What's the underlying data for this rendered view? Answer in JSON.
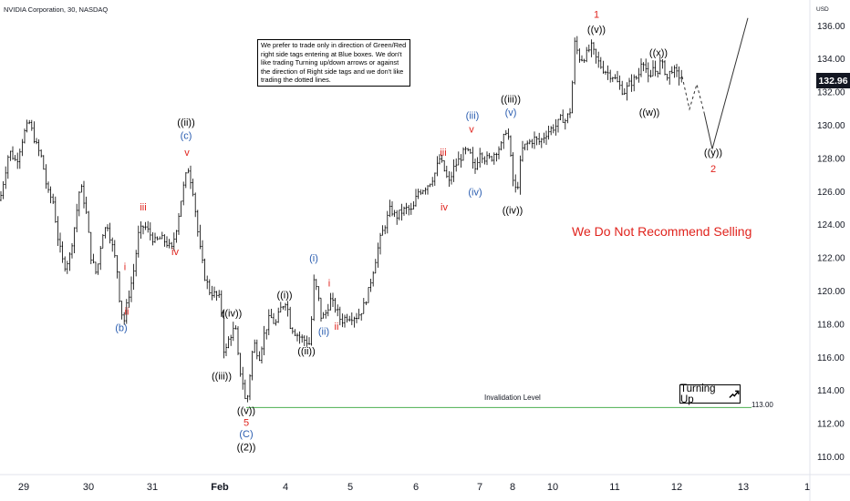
{
  "title": "NVIDIA Corporation, 30, NASDAQ",
  "currency": "USD",
  "note": "We prefer to trade only in direction of Green/Red right side tags entering at Blue boxes. We don't like trading Turning up/down arrows or against the direction of Right side tags and we don't like trading the dotted lines.",
  "recommendation": "We Do Not Recommend Selling",
  "turning_label": "Turning Up",
  "invalidation_label": "Invalidation Level",
  "colors": {
    "red": "#e0231d",
    "blue": "#2a5db0",
    "green": "#4caf50",
    "text": "#131722"
  },
  "chart_data": {
    "type": "candlestick",
    "ylim": [
      109,
      137
    ],
    "y_ticks": [
      "110.00",
      "112.00",
      "114.00",
      "116.00",
      "118.00",
      "120.00",
      "122.00",
      "124.00",
      "126.00",
      "128.00",
      "130.00",
      "132.00",
      "134.00",
      "136.00"
    ],
    "x_ticks": [
      "29",
      "30",
      "31",
      "Feb",
      "4",
      "5",
      "6",
      "7",
      "8",
      "10",
      "11",
      "12",
      "13",
      "1"
    ],
    "last_price": "132.96",
    "invalidation_level": {
      "value": 113.0,
      "label": "113.00"
    },
    "path": [
      [
        0,
        125.5
      ],
      [
        10,
        128.5
      ],
      [
        18,
        127.8
      ],
      [
        26,
        129.5
      ],
      [
        32,
        130.2
      ],
      [
        40,
        128.8
      ],
      [
        46,
        128
      ],
      [
        52,
        126
      ],
      [
        58,
        125.5
      ],
      [
        64,
        123
      ],
      [
        70,
        121.5
      ],
      [
        76,
        122
      ],
      [
        82,
        124
      ],
      [
        88,
        126.5
      ],
      [
        94,
        125
      ],
      [
        100,
        122
      ],
      [
        106,
        121
      ],
      [
        112,
        123.5
      ],
      [
        118,
        124
      ],
      [
        124,
        122.5
      ],
      [
        128,
        121.5
      ],
      [
        132,
        119
      ],
      [
        136,
        118.2
      ],
      [
        140,
        119.5
      ],
      [
        146,
        121
      ],
      [
        152,
        123.5
      ],
      [
        158,
        124
      ],
      [
        164,
        123.5
      ],
      [
        170,
        123
      ],
      [
        176,
        123.2
      ],
      [
        182,
        123
      ],
      [
        188,
        122.5
      ],
      [
        194,
        124
      ],
      [
        200,
        126
      ],
      [
        206,
        127.5
      ],
      [
        212,
        126
      ],
      [
        218,
        123
      ],
      [
        224,
        121
      ],
      [
        230,
        120
      ],
      [
        236,
        119.8
      ],
      [
        242,
        119.5
      ],
      [
        246,
        116
      ],
      [
        250,
        117
      ],
      [
        254,
        117.5
      ],
      [
        258,
        117.8
      ],
      [
        262,
        115.5
      ],
      [
        266,
        114.6
      ],
      [
        270,
        113
      ],
      [
        274,
        115
      ],
      [
        278,
        117
      ],
      [
        284,
        116
      ],
      [
        290,
        117.5
      ],
      [
        296,
        118.5
      ],
      [
        302,
        118
      ],
      [
        308,
        119
      ],
      [
        314,
        119.5
      ],
      [
        318,
        118
      ],
      [
        324,
        117.5
      ],
      [
        330,
        117.2
      ],
      [
        336,
        117
      ],
      [
        340,
        116.8
      ],
      [
        344,
        120.6
      ],
      [
        348,
        120
      ],
      [
        352,
        118.5
      ],
      [
        356,
        118.5
      ],
      [
        362,
        119.5
      ],
      [
        368,
        119
      ],
      [
        374,
        118.2
      ],
      [
        380,
        118.5
      ],
      [
        386,
        118.5
      ],
      [
        392,
        118.5
      ],
      [
        398,
        119
      ],
      [
        404,
        120
      ],
      [
        410,
        121.5
      ],
      [
        416,
        123
      ],
      [
        422,
        124
      ],
      [
        428,
        125
      ],
      [
        434,
        124.5
      ],
      [
        440,
        124.8
      ],
      [
        446,
        125
      ],
      [
        452,
        124.8
      ],
      [
        458,
        126
      ],
      [
        464,
        126.2
      ],
      [
        470,
        126.5
      ],
      [
        476,
        127
      ],
      [
        482,
        128
      ],
      [
        486,
        127.5
      ],
      [
        492,
        126.5
      ],
      [
        498,
        127.5
      ],
      [
        504,
        128
      ],
      [
        510,
        128.5
      ],
      [
        516,
        128.2
      ],
      [
        520,
        127.2
      ],
      [
        526,
        128.5
      ],
      [
        532,
        128
      ],
      [
        538,
        128
      ],
      [
        544,
        128.5
      ],
      [
        550,
        128.8
      ],
      [
        556,
        130
      ],
      [
        560,
        128
      ],
      [
        564,
        126
      ],
      [
        568,
        126.5
      ],
      [
        572,
        128.5
      ],
      [
        576,
        128.8
      ],
      [
        580,
        129
      ],
      [
        586,
        129.2
      ],
      [
        592,
        129
      ],
      [
        598,
        129.5
      ],
      [
        604,
        129.8
      ],
      [
        610,
        130
      ],
      [
        616,
        130.5
      ],
      [
        620,
        130.3
      ],
      [
        626,
        131
      ],
      [
        630,
        135
      ],
      [
        636,
        134
      ],
      [
        642,
        134.2
      ],
      [
        648,
        134.8
      ],
      [
        654,
        134
      ],
      [
        660,
        133.5
      ],
      [
        666,
        133.2
      ],
      [
        672,
        133
      ],
      [
        678,
        132.5
      ],
      [
        684,
        132
      ],
      [
        690,
        132.5
      ],
      [
        696,
        132.8
      ],
      [
        700,
        133
      ],
      [
        704,
        134.2
      ],
      [
        708,
        133.5
      ],
      [
        712,
        132.5
      ],
      [
        716,
        133.5
      ],
      [
        720,
        133.2
      ],
      [
        724,
        133.8
      ],
      [
        728,
        133.5
      ],
      [
        732,
        132.8
      ],
      [
        736,
        133.5
      ],
      [
        740,
        133.2
      ],
      [
        744,
        133
      ],
      [
        748,
        132.96
      ]
    ],
    "projection": {
      "dashed": [
        [
          748,
          132.96
        ],
        [
          756,
          131
        ],
        [
          764,
          132.5
        ],
        [
          772,
          130.8
        ]
      ],
      "solid": [
        [
          772,
          130.8
        ],
        [
          781,
          128.6
        ],
        [
          820,
          136.5
        ]
      ]
    },
    "labels": [
      {
        "text": "1",
        "x": 654,
        "y": 136.5,
        "color": "red"
      },
      {
        "text": "((v))",
        "x": 654,
        "y": 135.6,
        "color": "black"
      },
      {
        "text": "((x))",
        "x": 722,
        "y": 134.2,
        "color": "black"
      },
      {
        "text": "((w))",
        "x": 712,
        "y": 130.6,
        "color": "black"
      },
      {
        "text": "((iii))",
        "x": 560,
        "y": 131.4,
        "color": "black"
      },
      {
        "text": "(v)",
        "x": 560,
        "y": 130.6,
        "color": "blue"
      },
      {
        "text": "(iii)",
        "x": 518,
        "y": 130.4,
        "color": "blue"
      },
      {
        "text": "v",
        "x": 517,
        "y": 129.6,
        "color": "red"
      },
      {
        "text": "iii",
        "x": 486,
        "y": 128.2,
        "color": "red"
      },
      {
        "text": "iv",
        "x": 487,
        "y": 124.9,
        "color": "red"
      },
      {
        "text": "(iv)",
        "x": 521,
        "y": 125.8,
        "color": "blue"
      },
      {
        "text": "((iv))",
        "x": 562,
        "y": 124.7,
        "color": "black"
      },
      {
        "text": "((y))",
        "x": 782,
        "y": 128.2,
        "color": "black"
      },
      {
        "text": "2",
        "x": 782,
        "y": 127.2,
        "color": "red"
      },
      {
        "text": "((ii))",
        "x": 204,
        "y": 130.0,
        "color": "black"
      },
      {
        "text": "(c)",
        "x": 204,
        "y": 129.2,
        "color": "blue"
      },
      {
        "text": "v",
        "x": 205,
        "y": 128.2,
        "color": "red"
      },
      {
        "text": "iii",
        "x": 157,
        "y": 124.9,
        "color": "red"
      },
      {
        "text": "iv",
        "x": 192,
        "y": 122.2,
        "color": "red"
      },
      {
        "text": "i",
        "x": 137,
        "y": 121.3,
        "color": "red"
      },
      {
        "text": "ii",
        "x": 139,
        "y": 118.6,
        "color": "red"
      },
      {
        "text": "(b)",
        "x": 133,
        "y": 117.6,
        "color": "blue"
      },
      {
        "text": "(i)",
        "x": 344,
        "y": 121.8,
        "color": "blue"
      },
      {
        "text": "i",
        "x": 361,
        "y": 120.3,
        "color": "red"
      },
      {
        "text": "((i))",
        "x": 312,
        "y": 119.6,
        "color": "black"
      },
      {
        "text": "((iv))",
        "x": 254,
        "y": 118.5,
        "color": "black"
      },
      {
        "text": "(ii)",
        "x": 355,
        "y": 117.4,
        "color": "blue"
      },
      {
        "text": "ii",
        "x": 369,
        "y": 117.7,
        "color": "red"
      },
      {
        "text": "((ii))",
        "x": 336,
        "y": 116.2,
        "color": "black"
      },
      {
        "text": "((iii))",
        "x": 243,
        "y": 114.7,
        "color": "black"
      },
      {
        "text": "((v))",
        "x": 270,
        "y": 112.6,
        "color": "black"
      },
      {
        "text": "5",
        "x": 270,
        "y": 111.9,
        "color": "red"
      },
      {
        "text": "(C)",
        "x": 270,
        "y": 111.2,
        "color": "blue"
      },
      {
        "text": "((2))",
        "x": 270,
        "y": 110.4,
        "color": "black"
      }
    ]
  }
}
